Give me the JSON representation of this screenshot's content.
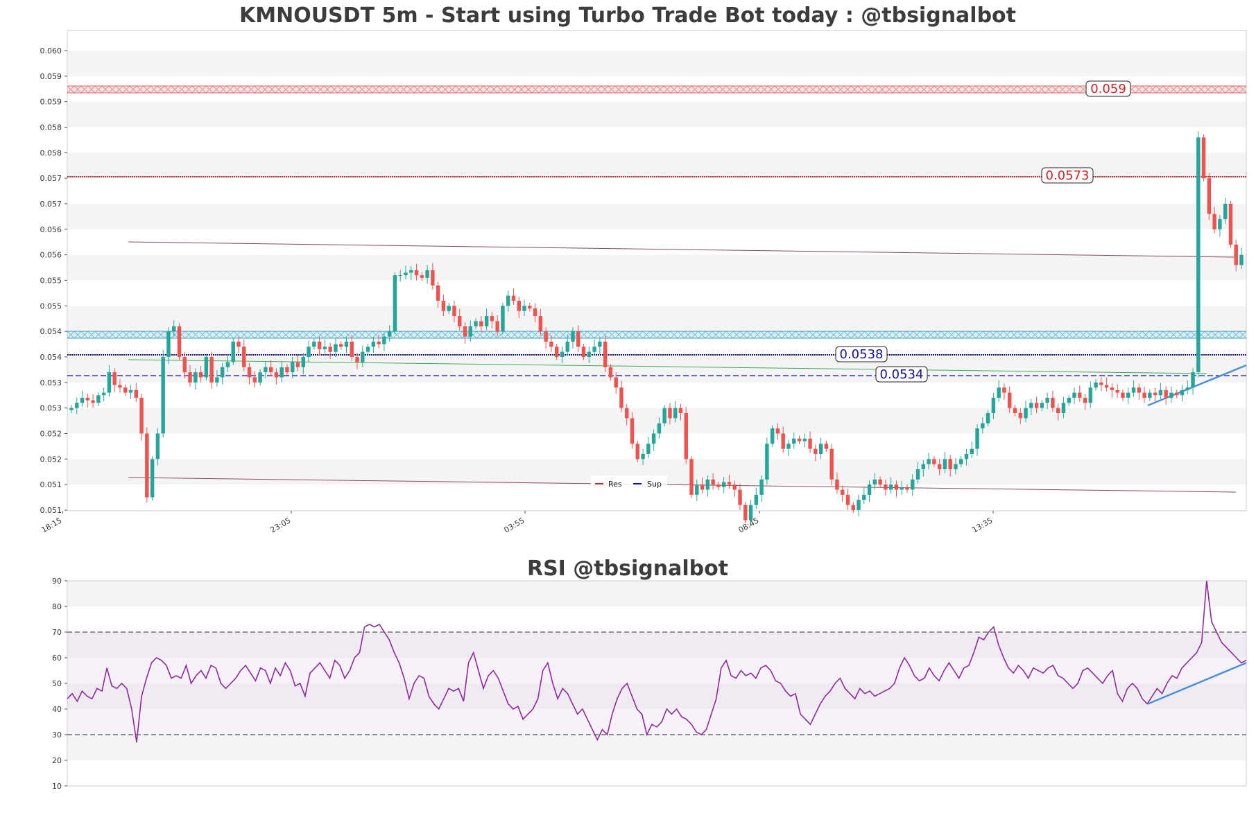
{
  "colors": {
    "up": "#26a69a",
    "down": "#ef5350",
    "resistance": "#d42020",
    "support": "#1010a0",
    "zone_red": "#e06060",
    "zone_blue": "#3aa0c8",
    "trend": "#8a4a5a",
    "ma": "#3aaa5a",
    "rsi": "#8e2a9e",
    "rsi_trend": "#4a90e0",
    "band_gray": "#f4f4f4"
  },
  "price_chart": {
    "title": "KMNOUSDT 5m - Start using Turbo Trade Bot today : @tbsignalbot",
    "y_ticks": [
      "0.051",
      "0.051",
      "0.052",
      "0.052",
      "0.053",
      "0.053",
      "0.054",
      "0.054",
      "0.055",
      "0.055",
      "0.056",
      "0.056",
      "0.057",
      "0.057",
      "0.058",
      "0.058",
      "0.059",
      "0.059",
      "0.060"
    ],
    "x_ticks": [
      "18:15",
      "23:05",
      "03:55",
      "08:45",
      "13:35"
    ],
    "level_labels": {
      "r1": "0.059",
      "r2": "0.0573",
      "s1": "0.0538",
      "s2": "0.0534"
    },
    "legend": {
      "res": "Res",
      "sup": "Sup"
    }
  },
  "rsi_chart": {
    "title": "RSI @tbsignalbot",
    "y_ticks": [
      "10",
      "20",
      "30",
      "40",
      "50",
      "60",
      "70",
      "80",
      "90"
    ]
  },
  "chart_data": [
    {
      "type": "candlestick",
      "title": "KMNOUSDT 5m - Start using Turbo Trade Bot today : @tbsignalbot",
      "ylim": [
        0.051,
        0.06
      ],
      "x_ticks": [
        "18:15",
        "23:05",
        "03:55",
        "08:45",
        "13:35"
      ],
      "close_series": [
        0.053,
        0.0531,
        0.0532,
        0.05315,
        0.0531,
        0.05325,
        0.0533,
        0.0537,
        0.05345,
        0.0534,
        0.0533,
        0.05335,
        0.0532,
        0.0525,
        0.05125,
        0.052,
        0.0525,
        0.054,
        0.0545,
        0.0546,
        0.054,
        0.0537,
        0.0535,
        0.0537,
        0.0536,
        0.054,
        0.0535,
        0.0536,
        0.0538,
        0.0539,
        0.0543,
        0.0542,
        0.0538,
        0.0536,
        0.0535,
        0.0537,
        0.0538,
        0.0537,
        0.0536,
        0.0538,
        0.0537,
        0.0539,
        0.0538,
        0.054,
        0.0542,
        0.0543,
        0.05415,
        0.0542,
        0.0541,
        0.05425,
        0.0542,
        0.0543,
        0.054,
        0.0539,
        0.0541,
        0.0542,
        0.0543,
        0.05425,
        0.0544,
        0.0545,
        0.0556,
        0.0556,
        0.05565,
        0.0557,
        0.0556,
        0.05555,
        0.0557,
        0.0554,
        0.0551,
        0.0549,
        0.055,
        0.0548,
        0.0546,
        0.0544,
        0.0546,
        0.0547,
        0.0546,
        0.0548,
        0.0547,
        0.0545,
        0.055,
        0.0552,
        0.0551,
        0.0549,
        0.055,
        0.05495,
        0.0548,
        0.0545,
        0.0543,
        0.0542,
        0.054,
        0.0541,
        0.0543,
        0.0545,
        0.0542,
        0.054,
        0.0541,
        0.0542,
        0.0543,
        0.0538,
        0.0536,
        0.0534,
        0.053,
        0.0528,
        0.0523,
        0.052,
        0.0521,
        0.0523,
        0.0525,
        0.0527,
        0.053,
        0.0528,
        0.053,
        0.0529,
        0.052,
        0.0513,
        0.0515,
        0.0514,
        0.0516,
        0.0515,
        0.05145,
        0.05155,
        0.0515,
        0.0514,
        0.0511,
        0.0508,
        0.0511,
        0.0513,
        0.0516,
        0.0523,
        0.0526,
        0.0525,
        0.0522,
        0.0523,
        0.0524,
        0.05235,
        0.0524,
        0.0522,
        0.0521,
        0.0523,
        0.0522,
        0.0516,
        0.0514,
        0.0513,
        0.0511,
        0.051,
        0.0512,
        0.0513,
        0.0515,
        0.0516,
        0.0515,
        0.0514,
        0.0515,
        0.0514,
        0.05145,
        0.0514,
        0.0516,
        0.0518,
        0.0519,
        0.052,
        0.0519,
        0.0518,
        0.052,
        0.0518,
        0.0519,
        0.052,
        0.0521,
        0.0522,
        0.0526,
        0.0527,
        0.0529,
        0.0532,
        0.0534,
        0.0533,
        0.053,
        0.0529,
        0.0528,
        0.053,
        0.0531,
        0.053,
        0.0531,
        0.0532,
        0.053,
        0.0529,
        0.0531,
        0.0532,
        0.0533,
        0.0532,
        0.0531,
        0.0534,
        0.0535,
        0.05345,
        0.0534,
        0.05335,
        0.0533,
        0.0532,
        0.0533,
        0.0534,
        0.0533,
        0.0532,
        0.0533,
        0.05325,
        0.05335,
        0.0532,
        0.0533,
        0.05325,
        0.05335,
        0.0534,
        0.0537,
        0.0583,
        0.0575,
        0.0568,
        0.0565,
        0.0567,
        0.057,
        0.0562,
        0.0558,
        0.056
      ]
    },
    {
      "type": "line",
      "title": "RSI @tbsignalbot",
      "ylim": [
        10,
        90
      ],
      "reference_lines": [
        30,
        70
      ],
      "series": [
        {
          "values": [
            44,
            46,
            43,
            47,
            45,
            44,
            48,
            47,
            56,
            49,
            48,
            50,
            48,
            40,
            27,
            45,
            52,
            58,
            60,
            59,
            57,
            52,
            53,
            52,
            57,
            50,
            53,
            55,
            52,
            57,
            56,
            50,
            48,
            50,
            52,
            55,
            57,
            54,
            51,
            56,
            55,
            50,
            56,
            53,
            58,
            55,
            49,
            50,
            45,
            54,
            56,
            58,
            55,
            52,
            59,
            57,
            52,
            55,
            60,
            62,
            72,
            73,
            72,
            73,
            70,
            67,
            62,
            58,
            52,
            44,
            50,
            53,
            52,
            45,
            42,
            40,
            44,
            48,
            47,
            48,
            43,
            58,
            62,
            55,
            48,
            53,
            55,
            52,
            47,
            42,
            40,
            41,
            36,
            38,
            40,
            44,
            55,
            58,
            50,
            44,
            48,
            46,
            42,
            38,
            40,
            36,
            32,
            28,
            32,
            30,
            38,
            44,
            48,
            50,
            45,
            40,
            38,
            30,
            34,
            33,
            35,
            40,
            38,
            40,
            37,
            36,
            34,
            31,
            30,
            32,
            38,
            44,
            56,
            59,
            53,
            52,
            55,
            53,
            54,
            52,
            56,
            57,
            55,
            51,
            50,
            47,
            45,
            46,
            38,
            36,
            34,
            38,
            42,
            45,
            47,
            50,
            52,
            48,
            46,
            44,
            48,
            46,
            47,
            45,
            46,
            47,
            48,
            50,
            56,
            60,
            57,
            53,
            51,
            52,
            56,
            53,
            51,
            55,
            58,
            55,
            52,
            56,
            57,
            62,
            68,
            67,
            70,
            72,
            65,
            60,
            56,
            54,
            57,
            55,
            52,
            56,
            55,
            54,
            56,
            57,
            53,
            52,
            50,
            48,
            50,
            55,
            56,
            54,
            52,
            50,
            53,
            55,
            46,
            43,
            48,
            50,
            48,
            44,
            42,
            45,
            48,
            46,
            50,
            53,
            52,
            56,
            58,
            60,
            62,
            66,
            90,
            74,
            70,
            66,
            64,
            62,
            60,
            58,
            59
          ]
        }
      ]
    }
  ]
}
